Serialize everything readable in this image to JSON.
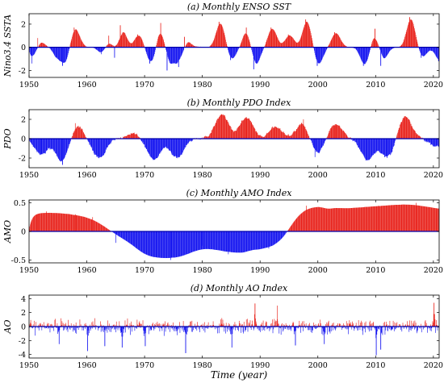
{
  "colors": {
    "positive": "#e8231c",
    "negative": "#1414f0",
    "zero_line": "#0000aa"
  },
  "figure": {
    "xlabel": "Time (year)"
  },
  "chart_data": [
    {
      "type": "bar",
      "title": "(a) Monthly ENSO SST",
      "ylabel": "Nino3.4 SSTA",
      "xlim": [
        1950,
        2021
      ],
      "ylim": [
        -2.6,
        2.9
      ],
      "xticks": [
        1950,
        1960,
        1970,
        1980,
        1990,
        2000,
        2010,
        2020
      ],
      "yticks": [
        -2,
        0,
        2
      ],
      "grid": false,
      "anomalies": [
        {
          "x": 1950.5,
          "y": -1.4
        },
        {
          "x": 1951.5,
          "y": 0.8
        },
        {
          "x": 1954.8,
          "y": -0.9
        },
        {
          "x": 1955.8,
          "y": -1.6
        },
        {
          "x": 1957.8,
          "y": 1.7
        },
        {
          "x": 1962.5,
          "y": -0.6
        },
        {
          "x": 1963.8,
          "y": 1.0
        },
        {
          "x": 1964.8,
          "y": -0.9
        },
        {
          "x": 1965.8,
          "y": 1.9
        },
        {
          "x": 1968.8,
          "y": 1.1
        },
        {
          "x": 1970.9,
          "y": -1.4
        },
        {
          "x": 1972.8,
          "y": 2.1
        },
        {
          "x": 1973.9,
          "y": -2.0
        },
        {
          "x": 1975.9,
          "y": -1.7
        },
        {
          "x": 1976.9,
          "y": 0.9
        },
        {
          "x": 1982.9,
          "y": 2.2
        },
        {
          "x": 1984.9,
          "y": -1.1
        },
        {
          "x": 1987.6,
          "y": 1.7
        },
        {
          "x": 1988.9,
          "y": -1.9
        },
        {
          "x": 1991.9,
          "y": 1.7
        },
        {
          "x": 1994.9,
          "y": 1.1
        },
        {
          "x": 1997.9,
          "y": 2.4
        },
        {
          "x": 1999.9,
          "y": -1.6
        },
        {
          "x": 2002.9,
          "y": 1.3
        },
        {
          "x": 2007.9,
          "y": -1.6
        },
        {
          "x": 2009.9,
          "y": 1.6
        },
        {
          "x": 2010.9,
          "y": -1.6
        },
        {
          "x": 2015.9,
          "y": 2.6
        },
        {
          "x": 2017.9,
          "y": -0.9
        },
        {
          "x": 2020.9,
          "y": -1.2
        }
      ]
    },
    {
      "type": "bar",
      "title": "(b) Monthly PDO Index",
      "ylabel": "PDO",
      "xlim": [
        1950,
        2021
      ],
      "ylim": [
        -3.0,
        3.0
      ],
      "xticks": [
        1950,
        1960,
        1970,
        1980,
        1990,
        2000,
        2010,
        2020
      ],
      "yticks": [
        -2,
        0,
        2
      ],
      "grid": false,
      "anomalies": [
        {
          "x": 1952.0,
          "y": -1.6
        },
        {
          "x": 1955.8,
          "y": -2.7
        },
        {
          "x": 1958.0,
          "y": 1.6
        },
        {
          "x": 1962.0,
          "y": -2.0
        },
        {
          "x": 1968.0,
          "y": 0.5
        },
        {
          "x": 1971.5,
          "y": -2.2
        },
        {
          "x": 1975.5,
          "y": -2.0
        },
        {
          "x": 1983.3,
          "y": 2.5
        },
        {
          "x": 1987.5,
          "y": 2.2
        },
        {
          "x": 1992.5,
          "y": 1.2
        },
        {
          "x": 1997.5,
          "y": 2.0
        },
        {
          "x": 1999.5,
          "y": -1.9
        },
        {
          "x": 2003.0,
          "y": 1.5
        },
        {
          "x": 2008.5,
          "y": -2.2
        },
        {
          "x": 2012.0,
          "y": -2.0
        },
        {
          "x": 2015.0,
          "y": 2.3
        },
        {
          "x": 2020.5,
          "y": -0.8
        }
      ]
    },
    {
      "type": "bar",
      "title": "(c) Monthly AMO Index",
      "ylabel": "AMO",
      "xlim": [
        1950,
        2021
      ],
      "ylim": [
        -0.55,
        0.55
      ],
      "xticks": [
        1950,
        1960,
        1970,
        1980,
        1990,
        2000,
        2010,
        2020
      ],
      "yticks": [
        -0.5,
        0,
        0.5
      ],
      "grid": false,
      "anomalies": [
        {
          "x": 1951.5,
          "y": 0.3
        },
        {
          "x": 1953.0,
          "y": 0.35
        },
        {
          "x": 1958.0,
          "y": 0.3
        },
        {
          "x": 1961.0,
          "y": 0.25
        },
        {
          "x": 1965.0,
          "y": -0.2
        },
        {
          "x": 1972.0,
          "y": -0.45
        },
        {
          "x": 1974.5,
          "y": -0.5
        },
        {
          "x": 1980.0,
          "y": -0.25
        },
        {
          "x": 1984.5,
          "y": -0.4
        },
        {
          "x": 1991.5,
          "y": -0.3
        },
        {
          "x": 1998.0,
          "y": 0.45
        },
        {
          "x": 2005.0,
          "y": 0.4
        },
        {
          "x": 2010.5,
          "y": 0.45
        },
        {
          "x": 2017.0,
          "y": 0.5
        },
        {
          "x": 2020.5,
          "y": 0.35
        }
      ]
    },
    {
      "type": "bar",
      "title": "(d) Monthly AO Index",
      "ylabel": "AO",
      "xlim": [
        1950,
        2021
      ],
      "ylim": [
        -4.5,
        4.5
      ],
      "xticks": [
        1950,
        1960,
        1970,
        1980,
        1990,
        2000,
        2010,
        2020
      ],
      "yticks": [
        -4,
        -2,
        0,
        2,
        4
      ],
      "grid": false,
      "anomalies": [
        {
          "x": 1955.2,
          "y": -2.5
        },
        {
          "x": 1960.1,
          "y": -3.5
        },
        {
          "x": 1963.1,
          "y": -2.8
        },
        {
          "x": 1966.1,
          "y": -3.0
        },
        {
          "x": 1970.1,
          "y": -2.8
        },
        {
          "x": 1977.1,
          "y": -3.8
        },
        {
          "x": 1985.1,
          "y": -3.0
        },
        {
          "x": 1989.1,
          "y": 3.3
        },
        {
          "x": 1993.0,
          "y": 3.0
        },
        {
          "x": 1996.1,
          "y": -2.7
        },
        {
          "x": 2001.1,
          "y": -2.5
        },
        {
          "x": 2010.1,
          "y": -4.1
        },
        {
          "x": 2010.9,
          "y": -3.3
        },
        {
          "x": 2020.1,
          "y": 3.4
        }
      ]
    }
  ]
}
